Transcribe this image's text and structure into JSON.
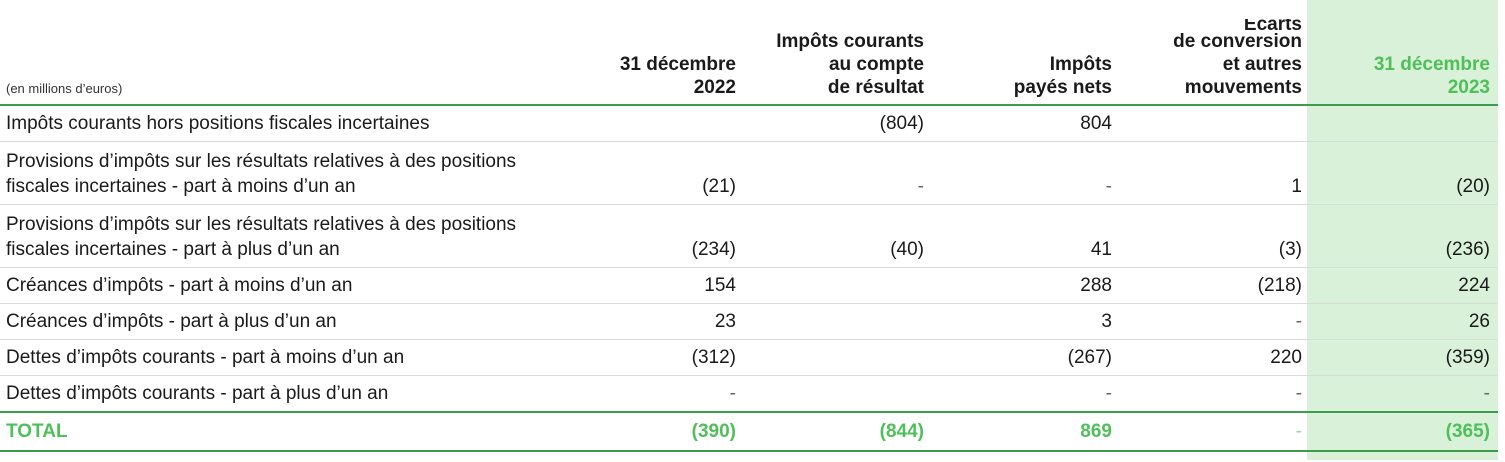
{
  "header": {
    "unit_label": "(en millions d’euros)",
    "columns": [
      [
        "31 décembre",
        "2022"
      ],
      [
        "Impôts courants",
        "au compte",
        "de résultat"
      ],
      [
        "Impôts",
        "payés nets"
      ],
      [
        "Écarts",
        "de conversion",
        "et autres",
        "mouvements"
      ],
      [
        "31 décembre",
        "2023"
      ]
    ]
  },
  "rows": [
    {
      "label": "Impôts courants hors positions fiscales incertaines",
      "values": [
        "",
        "(804)",
        "804",
        "",
        ""
      ]
    },
    {
      "label": "Provisions d’impôts sur les résultats relatives à des positions fiscales incertaines - part à moins d’un an",
      "values": [
        "(21)",
        "-",
        "-",
        "1",
        "(20)"
      ]
    },
    {
      "label": "Provisions d’impôts sur les résultats relatives à des positions fiscales incertaines - part à plus d’un an",
      "values": [
        "(234)",
        "(40)",
        "41",
        "(3)",
        "(236)"
      ]
    },
    {
      "label": "Créances d’impôts - part à moins d’un an",
      "values": [
        "154",
        "",
        "288",
        "(218)",
        "224"
      ]
    },
    {
      "label": "Créances d’impôts - part à plus d’un an",
      "values": [
        "23",
        "",
        "3",
        "-",
        "26"
      ]
    },
    {
      "label": "Dettes d’impôts courants - part à moins d’un an",
      "values": [
        "(312)",
        "",
        "(267)",
        "220",
        "(359)"
      ]
    },
    {
      "label": "Dettes d’impôts courants - part à plus d’un an",
      "values": [
        "-",
        "",
        "-",
        "-",
        "-"
      ]
    }
  ],
  "total": {
    "label": "TOTAL",
    "values": [
      "(390)",
      "(844)",
      "869",
      "-",
      "(365)"
    ]
  },
  "colors": {
    "accent_green": "#4fbf5a",
    "rule_green": "#3c9c4c",
    "highlight_column": "#d8f1d8"
  }
}
